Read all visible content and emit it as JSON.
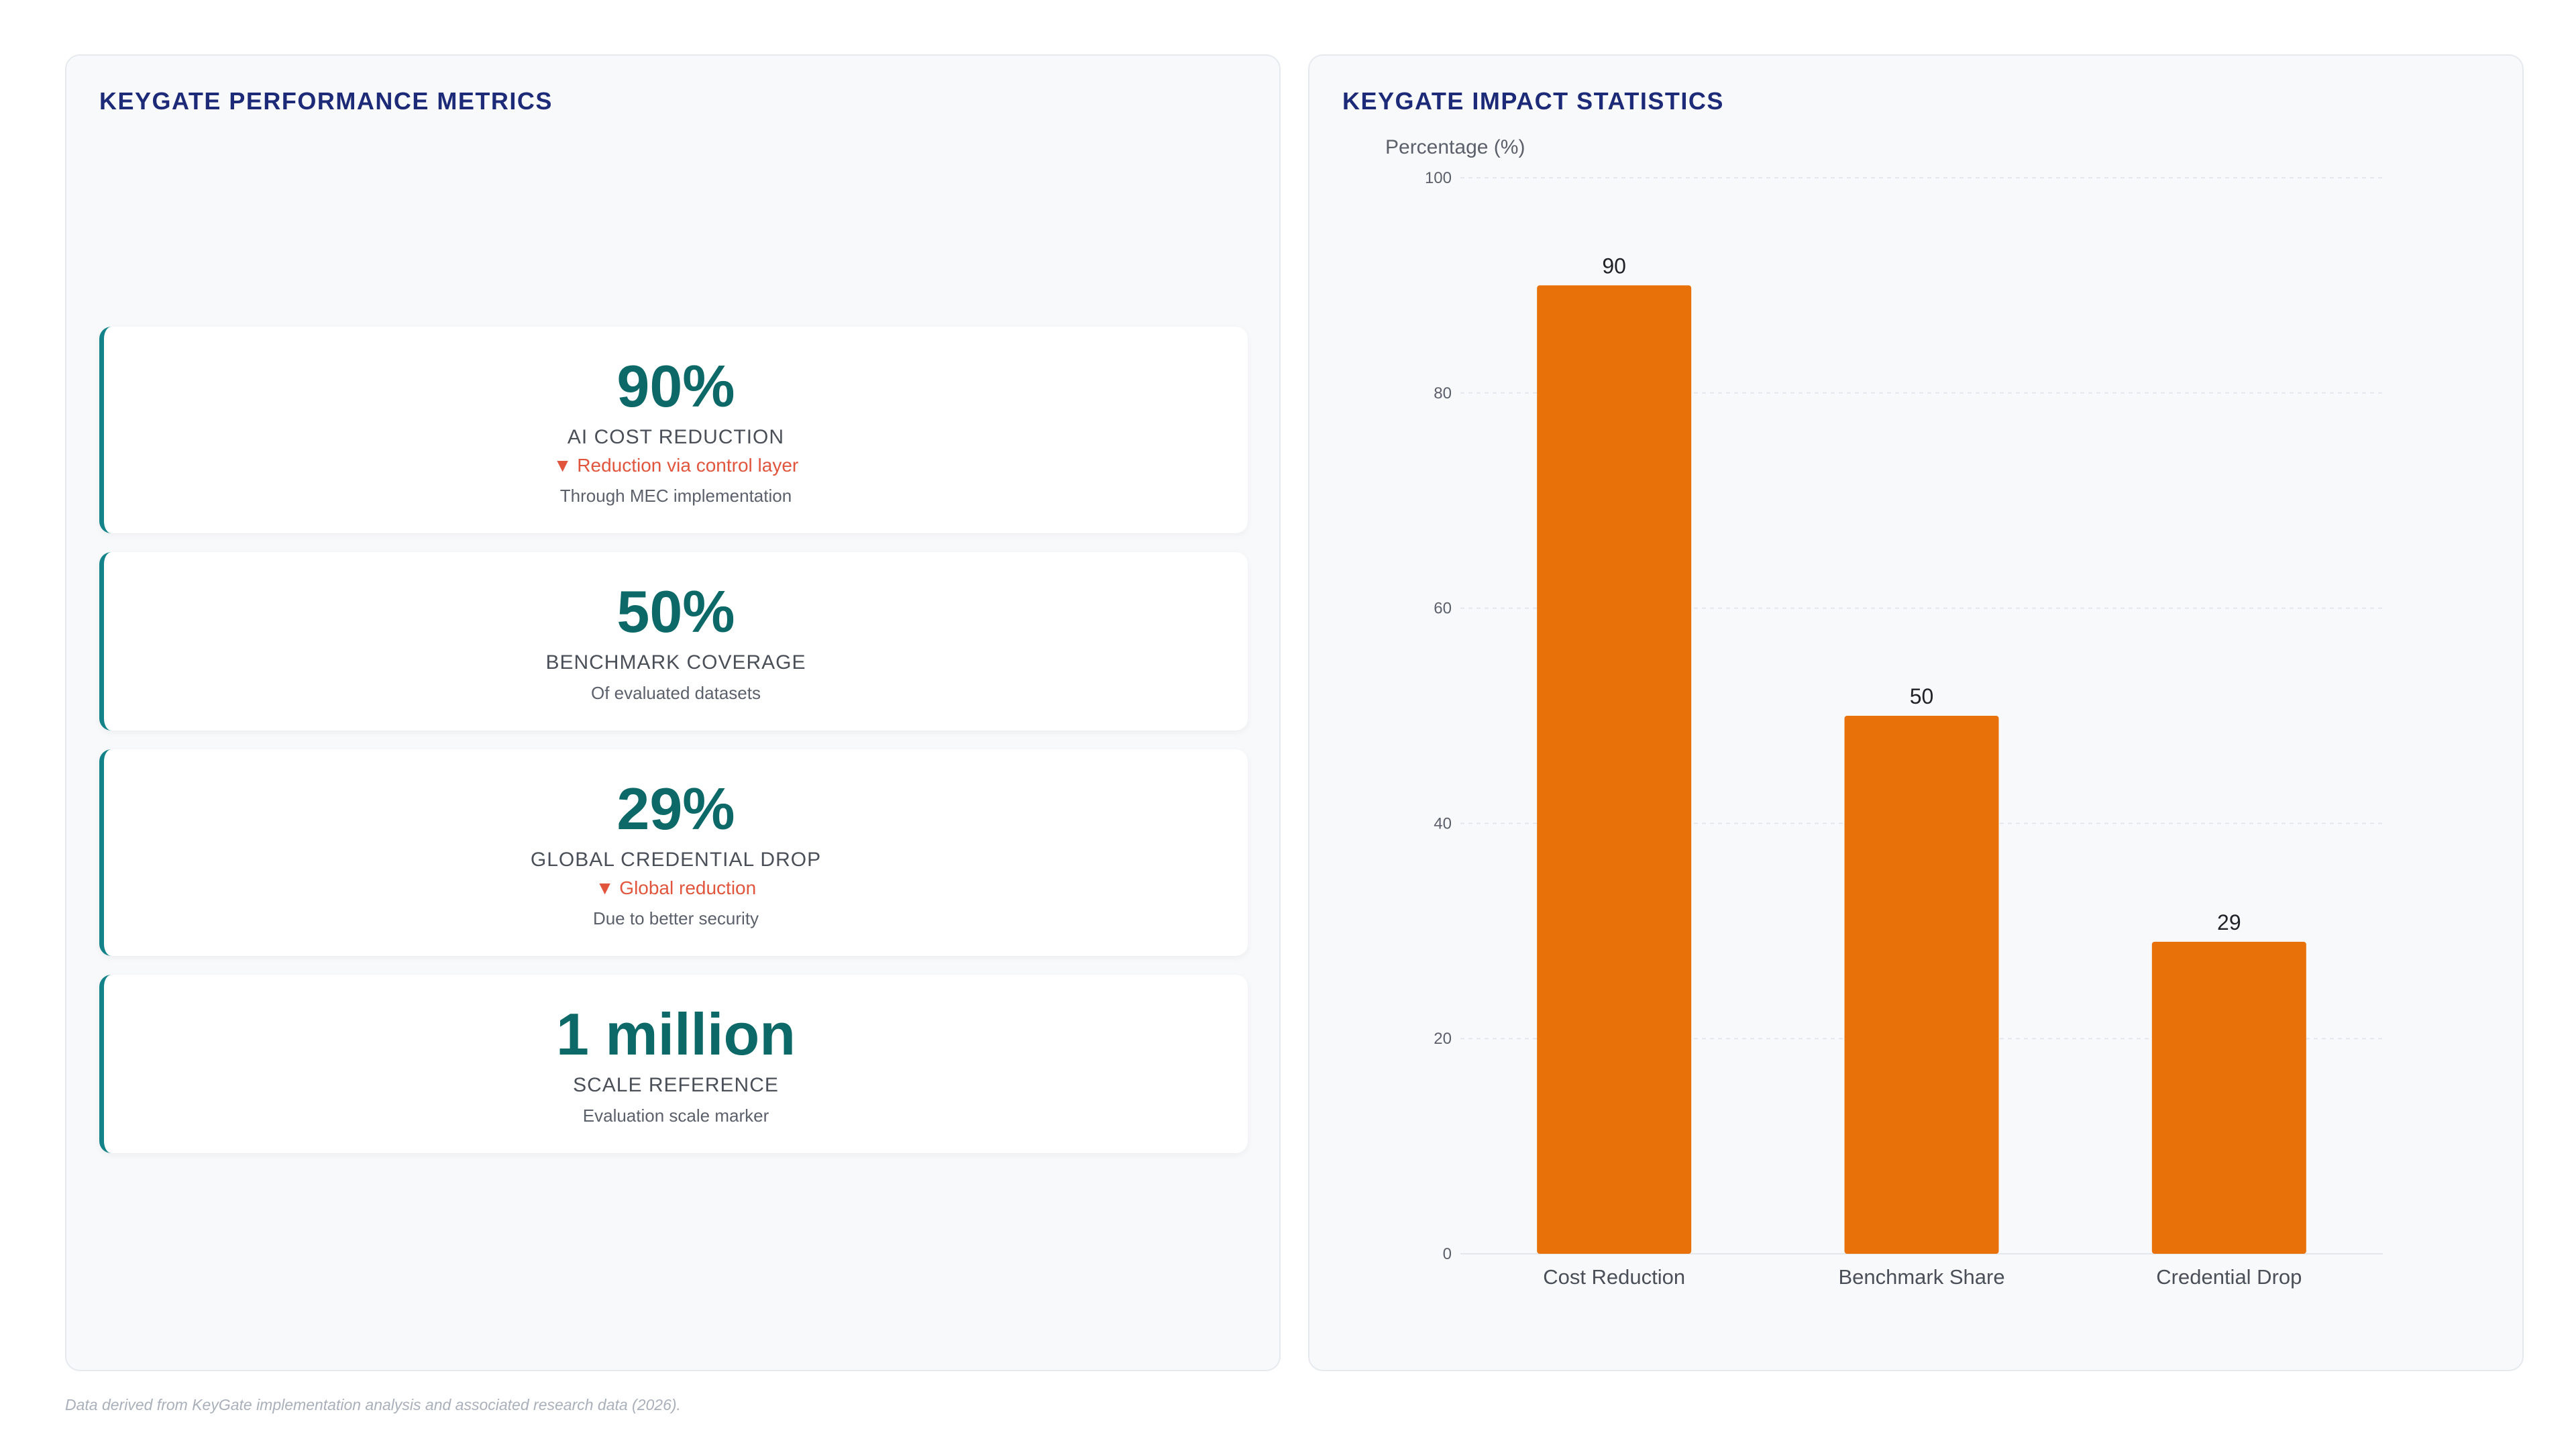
{
  "left_panel": {
    "title": "KEYGATE PERFORMANCE METRICS",
    "metrics": [
      {
        "value": "90%",
        "label": "AI COST REDUCTION",
        "change": "▼ Reduction via control layer",
        "sub": "Through MEC implementation"
      },
      {
        "value": "50%",
        "label": "BENCHMARK COVERAGE",
        "change": "",
        "sub": "Of evaluated datasets"
      },
      {
        "value": "29%",
        "label": "GLOBAL CREDENTIAL DROP",
        "change": "▼ Global reduction",
        "sub": "Due to better security"
      },
      {
        "value": "1 million",
        "label": "SCALE REFERENCE",
        "change": "",
        "sub": "Evaluation scale marker"
      }
    ]
  },
  "right_panel": {
    "title": "KEYGATE IMPACT STATISTICS"
  },
  "chart_data": {
    "type": "bar",
    "categories": [
      "Cost Reduction",
      "Benchmark Share",
      "Credential Drop"
    ],
    "values": [
      90,
      50,
      29
    ],
    "ylabel": "Percentage (%)",
    "ylim": [
      0,
      100
    ],
    "yticks": [
      0,
      20,
      40,
      60,
      80,
      100
    ],
    "grid": true,
    "bar_color": "#e8710a",
    "data_labels": true
  },
  "footnote": "Data derived from KeyGate implementation analysis and associated research data (2026).",
  "colors": {
    "title": "#1c2a78",
    "metric_value": "#0d6868",
    "accent_border": "#138389",
    "change_negative": "#e2553d",
    "bar": "#e8710a"
  }
}
